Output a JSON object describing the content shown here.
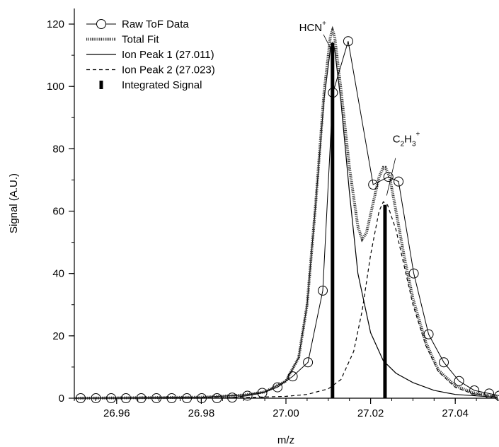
{
  "chart_data": {
    "type": "line",
    "xlabel": "m/z",
    "ylabel": "Signal (A.U.)",
    "xlim": [
      26.95,
      27.05
    ],
    "ylim": [
      0,
      125
    ],
    "xticks": [
      26.96,
      26.98,
      27.0,
      27.02,
      27.04
    ],
    "xtick_labels": [
      "26.96",
      "26.98",
      "27.00",
      "27.02",
      "27.04"
    ],
    "yticks": [
      0,
      20,
      40,
      60,
      80,
      100,
      120
    ],
    "ytick_labels": [
      "0",
      "20",
      "40",
      "60",
      "80",
      "100",
      "120"
    ],
    "grid": false,
    "legend_position": "top-left",
    "legend": [
      {
        "label": "Raw ToF Data",
        "style": "line-circle"
      },
      {
        "label": "Total Fit",
        "style": "dotted-thick"
      },
      {
        "label": "Ion Peak 1 (27.011)",
        "style": "solid"
      },
      {
        "label": "Ion Peak 2 (27.023)",
        "style": "dashed"
      },
      {
        "label": "Integrated Signal",
        "style": "bar"
      }
    ],
    "annotations": [
      {
        "base": "HCN",
        "sup": "+",
        "x": 27.0102,
        "y": 118
      },
      {
        "formula": [
          "C",
          "2",
          "H",
          "3",
          "+"
        ],
        "x": 27.0232,
        "y": 64
      }
    ],
    "series": [
      {
        "name": "Raw ToF Data",
        "style": "circles",
        "x": [
          26.9515,
          26.9551,
          26.9587,
          26.9622,
          26.9658,
          26.9694,
          26.973,
          26.9766,
          26.9801,
          26.9837,
          26.9873,
          26.9909,
          26.9944,
          26.998,
          27.0016,
          27.0052,
          27.0087,
          27.0111,
          27.0147,
          27.0206,
          27.0242,
          27.0266,
          27.0302,
          27.0337,
          27.0373,
          27.0409,
          27.0445,
          27.048,
          27.0504
        ],
        "y": [
          0,
          0,
          0,
          0,
          0,
          0,
          0,
          0,
          0,
          0,
          0.2,
          0.8,
          1.7,
          3.5,
          7,
          11.5,
          34.5,
          98,
          114.5,
          68.5,
          71,
          69.5,
          40,
          20.5,
          11.5,
          5.5,
          2.5,
          1.5,
          0.8
        ]
      },
      {
        "name": "Total Fit",
        "style": "dotted",
        "x": [
          26.95,
          26.98,
          26.99,
          26.995,
          27.0,
          27.003,
          27.005,
          27.007,
          27.009,
          27.0105,
          27.011,
          27.0115,
          27.013,
          27.015,
          27.017,
          27.018,
          27.019,
          27.0205,
          27.022,
          27.023,
          27.0235,
          27.0245,
          27.026,
          27.028,
          27.03,
          27.033,
          27.036,
          27.04,
          27.044,
          27.048,
          27.05
        ],
        "y": [
          0,
          0.3,
          1,
          2,
          5.5,
          13,
          30,
          62,
          98,
          116,
          118,
          116,
          99,
          74,
          55,
          51,
          53,
          62,
          71,
          74,
          74,
          71,
          60,
          45,
          32,
          18,
          9,
          4,
          1.8,
          0.8,
          0.5
        ]
      },
      {
        "name": "Ion Peak 1 (27.011)",
        "style": "solid",
        "x": [
          26.95,
          26.98,
          26.99,
          26.995,
          27.0,
          27.003,
          27.005,
          27.007,
          27.009,
          27.0105,
          27.011,
          27.0115,
          27.013,
          27.015,
          27.017,
          27.02,
          27.023,
          27.026,
          27.03,
          27.035,
          27.04,
          27.05
        ],
        "y": [
          0,
          0.3,
          1,
          2,
          5.5,
          13,
          30,
          62,
          96,
          112,
          114,
          112,
          95,
          66,
          40,
          21,
          12,
          8,
          5,
          2.5,
          1.2,
          0.3
        ]
      },
      {
        "name": "Ion Peak 2 (27.023)",
        "style": "dashed",
        "x": [
          26.95,
          26.99,
          27.0,
          27.005,
          27.01,
          27.013,
          27.016,
          27.018,
          27.02,
          27.022,
          27.023,
          27.024,
          27.026,
          27.028,
          27.03,
          27.033,
          27.036,
          27.04,
          27.044,
          27.05
        ],
        "y": [
          0,
          0.2,
          0.6,
          1.2,
          3,
          6,
          15,
          28,
          46,
          60,
          63,
          62,
          54,
          42,
          30,
          17,
          8.5,
          3.5,
          1.5,
          0.5
        ]
      }
    ],
    "bars": [
      {
        "name": "Integrated Signal",
        "x": 27.011,
        "value": 114
      },
      {
        "name": "Integrated Signal",
        "x": 27.0234,
        "value": 62
      }
    ]
  }
}
